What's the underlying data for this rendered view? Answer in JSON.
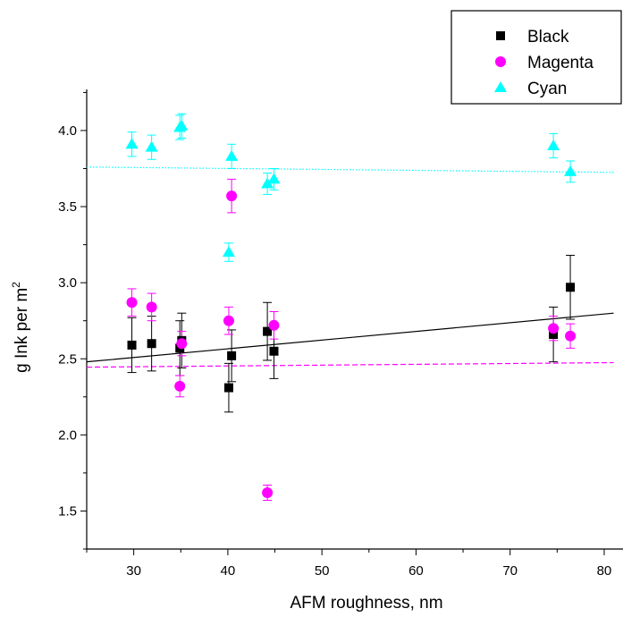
{
  "chart_data": {
    "type": "scatter",
    "xlabel": "AFM roughness, nm",
    "ylabel": "g Ink per m",
    "ylabel_sup": "2",
    "xlim": [
      25,
      82
    ],
    "ylim": [
      1.25,
      4.27
    ],
    "xticks": [
      30,
      40,
      50,
      60,
      70,
      80
    ],
    "yticks": [
      1.5,
      2.0,
      2.5,
      3.0,
      3.5,
      4.0
    ],
    "xtick_labels": [
      "30",
      "40",
      "50",
      "60",
      "70",
      "80"
    ],
    "ytick_labels": [
      "1.5",
      "2.0",
      "2.5",
      "3.0",
      "3.5",
      "4.0"
    ],
    "grid": false,
    "legend_position": "top-right",
    "series": [
      {
        "name": "Black",
        "marker": "square",
        "color": "#000000",
        "x": [
          29.8,
          31.9,
          34.9,
          35.1,
          40.1,
          40.4,
          44.2,
          44.9,
          74.6,
          76.4
        ],
        "y": [
          2.59,
          2.6,
          2.57,
          2.62,
          2.31,
          2.52,
          2.68,
          2.55,
          2.66,
          2.97
        ],
        "err": [
          0.18,
          0.18,
          0.18,
          0.18,
          0.16,
          0.17,
          0.19,
          0.18,
          0.18,
          0.21
        ],
        "fit": {
          "x": [
            25,
            81
          ],
          "y": [
            2.48,
            2.8
          ],
          "style": "solid"
        }
      },
      {
        "name": "Magenta",
        "marker": "circle",
        "color": "#ff00ff",
        "x": [
          29.8,
          31.9,
          34.9,
          35.1,
          40.1,
          40.4,
          44.2,
          44.9,
          74.6,
          76.4
        ],
        "y": [
          2.87,
          2.84,
          2.32,
          2.6,
          2.75,
          3.57,
          1.62,
          2.72,
          2.7,
          2.65
        ],
        "err": [
          0.09,
          0.09,
          0.07,
          0.08,
          0.09,
          0.11,
          0.05,
          0.09,
          0.08,
          0.08
        ],
        "fit": {
          "x": [
            25,
            81
          ],
          "y": [
            2.445,
            2.475
          ],
          "style": "dashed"
        }
      },
      {
        "name": "Cyan",
        "marker": "triangle",
        "color": "#00ffff",
        "x": [
          29.8,
          31.9,
          34.9,
          35.1,
          40.1,
          40.4,
          44.2,
          44.9,
          74.6,
          76.4
        ],
        "y": [
          3.91,
          3.89,
          4.02,
          4.03,
          3.2,
          3.83,
          3.65,
          3.68,
          3.9,
          3.73
        ],
        "err": [
          0.08,
          0.08,
          0.08,
          0.08,
          0.06,
          0.08,
          0.07,
          0.07,
          0.08,
          0.07
        ],
        "fit": {
          "x": [
            25,
            81
          ],
          "y": [
            3.76,
            3.725
          ],
          "style": "dotted"
        }
      }
    ]
  }
}
